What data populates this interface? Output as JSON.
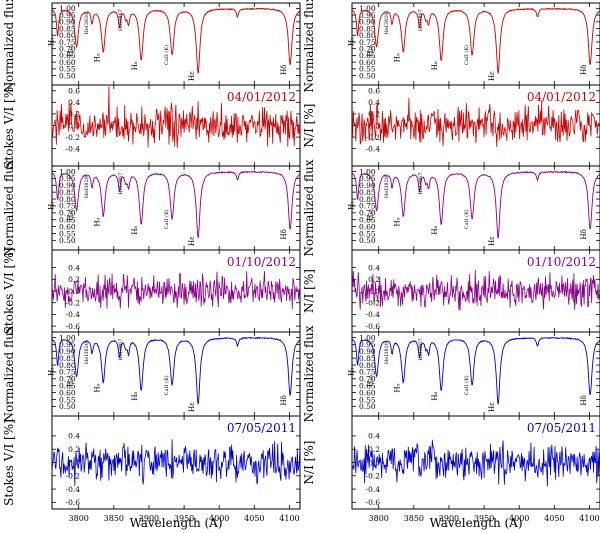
{
  "chart_data": {
    "type": "line",
    "xlabel": "Wavelength (A)",
    "x_ticks": [
      3800,
      3850,
      3900,
      3950,
      4000,
      4050,
      4100
    ],
    "xlim": [
      3762,
      4115
    ],
    "flux_ylabel": "Normalized flux",
    "flux_ticks": [
      "0.50",
      "0.55",
      "0.60",
      "0.65",
      "0.70",
      "0.75",
      "0.80",
      "0.85",
      "0.90",
      "0.95",
      "1.00"
    ],
    "flux_ylim": [
      0.43,
      1.04
    ],
    "pol_ylim": [
      -0.7,
      0.7
    ],
    "pol_ticks_top": [
      "-0.4",
      "-0.2",
      "0.0",
      "0.2",
      "0.4",
      "0.6"
    ],
    "pol_ticks": [
      "-0.6",
      "-0.4",
      "-0.2",
      "0.0",
      "0.2",
      "0.4"
    ],
    "columns": [
      {
        "pol_ylabel": "Stokes V/I [%]"
      },
      {
        "pol_ylabel": "N/I [%]"
      }
    ],
    "line_ids": [
      {
        "label": "H₁",
        "x": 3770,
        "depth": 0.2
      },
      {
        "label": "H₁₀",
        "x": 3797,
        "depth": 0.28
      },
      {
        "label": "H₉",
        "x": 3835,
        "depth": 0.32
      },
      {
        "label": "HeI3820",
        "x": 3819,
        "depth": 0.1
      },
      {
        "label": "HeI3867",
        "x": 3867,
        "depth": 0.06
      },
      {
        "label": "H₈",
        "x": 3889,
        "depth": 0.38
      },
      {
        "label": "CaII (K)",
        "x": 3933,
        "depth": 0.34
      },
      {
        "label": "Hε",
        "x": 3970,
        "depth": 0.48
      },
      {
        "label": "Hδ",
        "x": 4101,
        "depth": 0.42
      }
    ],
    "extra_dips": [
      {
        "x": 3858,
        "depth": 0.13
      },
      {
        "x": 3871,
        "depth": 0.1
      },
      {
        "x": 4026,
        "depth": 0.06
      }
    ],
    "observations": [
      {
        "date": "04/01/2012",
        "color": "#cc0000",
        "pol_ticks_key": "pol_ticks_top",
        "spikes": [
          {
            "x": 3843,
            "v": 0.68
          }
        ]
      },
      {
        "date": "01/10/2012",
        "color": "#8b008b",
        "pol_ticks_key": "pol_ticks",
        "spikes": []
      },
      {
        "date": "07/05/2011",
        "color": "#0000cc",
        "pol_ticks_key": "pol_ticks",
        "spikes": [
          {
            "x": 3933,
            "v": -0.55
          },
          {
            "x": 3933,
            "v": 0.35
          }
        ]
      }
    ]
  }
}
